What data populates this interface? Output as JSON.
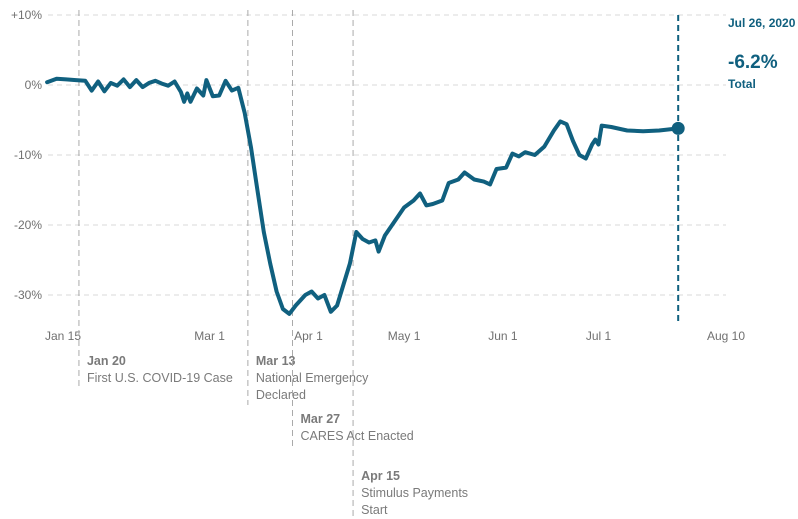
{
  "chart_data": {
    "type": "line",
    "title": "",
    "xlabel": "",
    "ylabel": "",
    "ylim": [
      -34,
      10
    ],
    "y_ticks": [
      {
        "value": 10,
        "label": "+10%"
      },
      {
        "value": 0,
        "label": "0%"
      },
      {
        "value": -10,
        "label": "-10%"
      },
      {
        "value": -20,
        "label": "-20%"
      },
      {
        "value": -30,
        "label": "-30%"
      }
    ],
    "x_ticks": [
      {
        "date": "2020-01-15",
        "label": "Jan 15"
      },
      {
        "date": "2020-03-01",
        "label": "Mar 1"
      },
      {
        "date": "2020-04-01",
        "label": "Apr 1"
      },
      {
        "date": "2020-05-01",
        "label": "May 1"
      },
      {
        "date": "2020-06-01",
        "label": "Jun 1"
      },
      {
        "date": "2020-07-01",
        "label": "Jul 1"
      },
      {
        "date": "2020-08-10",
        "label": "Aug 10"
      }
    ],
    "grid": true,
    "series": [
      {
        "color": "#10607f",
        "points": [
          [
            "2020-01-10",
            0.4
          ],
          [
            "2020-01-13",
            0.9
          ],
          [
            "2020-01-16",
            0.8
          ],
          [
            "2020-01-19",
            0.7
          ],
          [
            "2020-01-22",
            0.6
          ],
          [
            "2020-01-24",
            -0.8
          ],
          [
            "2020-01-26",
            0.5
          ],
          [
            "2020-01-28",
            -0.9
          ],
          [
            "2020-01-30",
            0.3
          ],
          [
            "2020-02-01",
            -0.1
          ],
          [
            "2020-02-03",
            0.8
          ],
          [
            "2020-02-05",
            -0.3
          ],
          [
            "2020-02-07",
            0.7
          ],
          [
            "2020-02-09",
            -0.3
          ],
          [
            "2020-02-11",
            0.3
          ],
          [
            "2020-02-13",
            0.6
          ],
          [
            "2020-02-15",
            0.2
          ],
          [
            "2020-02-17",
            -0.1
          ],
          [
            "2020-02-19",
            0.5
          ],
          [
            "2020-02-21",
            -1.0
          ],
          [
            "2020-02-22",
            -2.4
          ],
          [
            "2020-02-23",
            -1.2
          ],
          [
            "2020-02-24",
            -2.4
          ],
          [
            "2020-02-26",
            -0.5
          ],
          [
            "2020-02-28",
            -1.5
          ],
          [
            "2020-02-29",
            0.7
          ],
          [
            "2020-03-02",
            -1.6
          ],
          [
            "2020-03-04",
            -1.5
          ],
          [
            "2020-03-06",
            0.6
          ],
          [
            "2020-03-08",
            -0.8
          ],
          [
            "2020-03-10",
            -0.4
          ],
          [
            "2020-03-12",
            -4.0
          ],
          [
            "2020-03-14",
            -9.0
          ],
          [
            "2020-03-16",
            -15.0
          ],
          [
            "2020-03-18",
            -21.0
          ],
          [
            "2020-03-20",
            -25.5
          ],
          [
            "2020-03-22",
            -29.5
          ],
          [
            "2020-03-24",
            -32.0
          ],
          [
            "2020-03-26",
            -32.7
          ],
          [
            "2020-03-28",
            -31.5
          ],
          [
            "2020-03-31",
            -30.0
          ],
          [
            "2020-04-02",
            -29.5
          ],
          [
            "2020-04-04",
            -30.5
          ],
          [
            "2020-04-06",
            -30.0
          ],
          [
            "2020-04-08",
            -32.4
          ],
          [
            "2020-04-10",
            -31.5
          ],
          [
            "2020-04-12",
            -28.5
          ],
          [
            "2020-04-14",
            -25.5
          ],
          [
            "2020-04-16",
            -21.0
          ],
          [
            "2020-04-18",
            -22.0
          ],
          [
            "2020-04-20",
            -22.5
          ],
          [
            "2020-04-22",
            -22.2
          ],
          [
            "2020-04-23",
            -23.8
          ],
          [
            "2020-04-25",
            -21.5
          ],
          [
            "2020-04-28",
            -19.5
          ],
          [
            "2020-05-01",
            -17.5
          ],
          [
            "2020-05-04",
            -16.5
          ],
          [
            "2020-05-06",
            -15.5
          ],
          [
            "2020-05-08",
            -17.2
          ],
          [
            "2020-05-10",
            -17.0
          ],
          [
            "2020-05-13",
            -16.5
          ],
          [
            "2020-05-15",
            -14.0
          ],
          [
            "2020-05-18",
            -13.5
          ],
          [
            "2020-05-20",
            -12.5
          ],
          [
            "2020-05-23",
            -13.5
          ],
          [
            "2020-05-26",
            -13.8
          ],
          [
            "2020-05-28",
            -14.2
          ],
          [
            "2020-05-30",
            -12.0
          ],
          [
            "2020-06-02",
            -11.8
          ],
          [
            "2020-06-04",
            -9.8
          ],
          [
            "2020-06-06",
            -10.2
          ],
          [
            "2020-06-08",
            -9.6
          ],
          [
            "2020-06-11",
            -10.0
          ],
          [
            "2020-06-14",
            -8.8
          ],
          [
            "2020-06-17",
            -6.5
          ],
          [
            "2020-06-19",
            -5.2
          ],
          [
            "2020-06-21",
            -5.6
          ],
          [
            "2020-06-23",
            -8.0
          ],
          [
            "2020-06-25",
            -10.0
          ],
          [
            "2020-06-27",
            -10.5
          ],
          [
            "2020-06-29",
            -8.5
          ],
          [
            "2020-06-30",
            -7.8
          ],
          [
            "2020-07-01",
            -8.5
          ],
          [
            "2020-07-02",
            -5.8
          ],
          [
            "2020-07-05",
            -6.0
          ],
          [
            "2020-07-10",
            -6.5
          ],
          [
            "2020-07-15",
            -6.6
          ],
          [
            "2020-07-20",
            -6.5
          ],
          [
            "2020-07-26",
            -6.2
          ]
        ]
      }
    ],
    "events": [
      {
        "date": "2020-01-20",
        "date_label": "Jan 20",
        "lines": [
          "First U.S. COVID-19 Case"
        ],
        "row": 0
      },
      {
        "date": "2020-03-13",
        "date_label": "Mar 13",
        "lines": [
          "National Emergency",
          "Declared"
        ],
        "row": 0
      },
      {
        "date": "2020-03-27",
        "date_label": "Mar 27",
        "lines": [
          "CARES Act Enacted"
        ],
        "row": 1
      },
      {
        "date": "2020-04-15",
        "date_label": "Apr 15",
        "lines": [
          "Stimulus Payments",
          "Start"
        ],
        "row": 2
      }
    ],
    "endpoint": {
      "date": "2020-07-26",
      "date_label": "Jul 26, 2020",
      "value": -6.2,
      "value_label": "-6.2%",
      "series_label": "Total"
    },
    "colors": {
      "line": "#10607f",
      "grid": "#d9d9d9",
      "event_line": "#aaaaaa"
    }
  }
}
